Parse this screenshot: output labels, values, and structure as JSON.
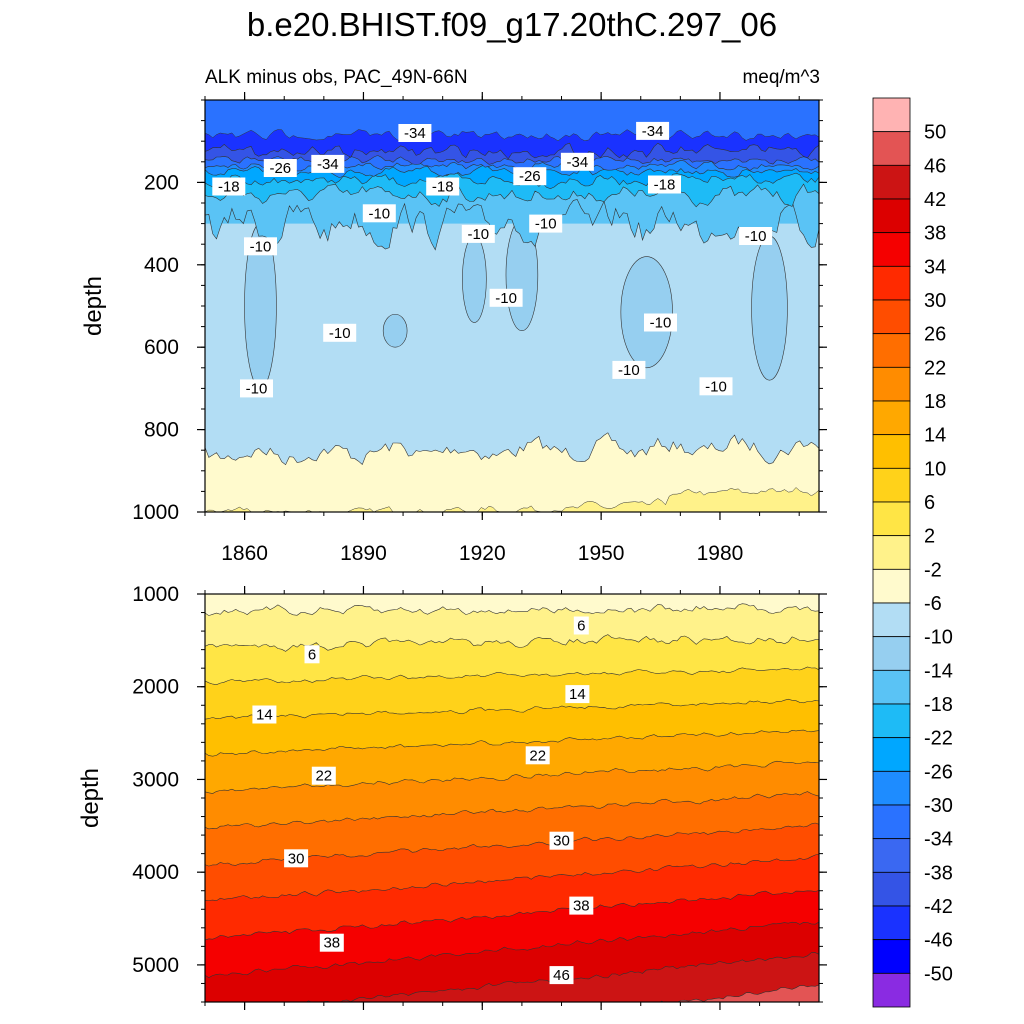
{
  "title": "b.e20.BHIST.f09_g17.20thC.297_06",
  "chart_data": {
    "type": "heatmap",
    "title": "b.e20.BHIST.f09_g17.20thC.297_06",
    "subtitle_left": "ALK minus obs, PAC_49N-66N",
    "subtitle_right": "meq/m^3",
    "colorbar": {
      "labels": [
        "50",
        "46",
        "42",
        "38",
        "34",
        "30",
        "26",
        "22",
        "18",
        "14",
        "10",
        "6",
        "2",
        "-2",
        "-6",
        "-10",
        "-14",
        "-18",
        "-22",
        "-26",
        "-30",
        "-34",
        "-38",
        "-42",
        "-46",
        "-50"
      ],
      "colors": [
        "#ffb3b3",
        "#e35454",
        "#cc1414",
        "#dc0000",
        "#f50000",
        "#ff2a00",
        "#ff4d00",
        "#ff6e00",
        "#ff8c00",
        "#ffa800",
        "#ffbf00",
        "#ffd21a",
        "#ffe545",
        "#fff28a",
        "#fffacd",
        "#b2ddf4",
        "#96cff0",
        "#5ac3f5",
        "#1ebbf6",
        "#00a7ff",
        "#1e8cff",
        "#2a72ff",
        "#3a68f2",
        "#3454e6",
        "#1a32ff",
        "#0000ff",
        "#8a2be2"
      ]
    },
    "panels": [
      {
        "name": "upper",
        "ylabel": "depth",
        "xlim": [
          1850,
          2005
        ],
        "ylim": [
          0,
          1000
        ],
        "y_reversed": true,
        "xticks": [
          1860,
          1890,
          1920,
          1950,
          1980
        ],
        "yticks": [
          200,
          400,
          600,
          800,
          1000
        ],
        "contour_labels": [
          {
            "text": "-34",
            "x": 1903,
            "y": 80
          },
          {
            "text": "-34",
            "x": 1963,
            "y": 75
          },
          {
            "text": "-26",
            "x": 1869,
            "y": 165
          },
          {
            "text": "-34",
            "x": 1881,
            "y": 155
          },
          {
            "text": "-34",
            "x": 1944,
            "y": 150
          },
          {
            "text": "-26",
            "x": 1932,
            "y": 185
          },
          {
            "text": "-18",
            "x": 1856,
            "y": 210
          },
          {
            "text": "-18",
            "x": 1910,
            "y": 210
          },
          {
            "text": "-18",
            "x": 1966,
            "y": 205
          },
          {
            "text": "-10",
            "x": 1894,
            "y": 275
          },
          {
            "text": "-10",
            "x": 1936,
            "y": 300
          },
          {
            "text": "-10",
            "x": 1919,
            "y": 325
          },
          {
            "text": "-10",
            "x": 1864,
            "y": 355
          },
          {
            "text": "-10",
            "x": 1989,
            "y": 330
          },
          {
            "text": "-10",
            "x": 1926,
            "y": 480
          },
          {
            "text": "-10",
            "x": 1884,
            "y": 565
          },
          {
            "text": "-10",
            "x": 1965,
            "y": 540
          },
          {
            "text": "-10",
            "x": 1957,
            "y": 655
          },
          {
            "text": "-10",
            "x": 1863,
            "y": 700
          },
          {
            "text": "-10",
            "x": 1979,
            "y": 695
          }
        ]
      },
      {
        "name": "lower",
        "ylabel": "depth",
        "xlim": [
          1850,
          2005
        ],
        "ylim": [
          1000,
          5400
        ],
        "y_reversed": true,
        "yticks": [
          1000,
          2000,
          3000,
          4000,
          5000
        ],
        "contour_labels": [
          {
            "text": "6",
            "x": 1877,
            "y": 1650
          },
          {
            "text": "6",
            "x": 1945,
            "y": 1340
          },
          {
            "text": "14",
            "x": 1865,
            "y": 2300
          },
          {
            "text": "14",
            "x": 1944,
            "y": 2080
          },
          {
            "text": "22",
            "x": 1880,
            "y": 2960
          },
          {
            "text": "22",
            "x": 1934,
            "y": 2740
          },
          {
            "text": "30",
            "x": 1873,
            "y": 3850
          },
          {
            "text": "30",
            "x": 1940,
            "y": 3660
          },
          {
            "text": "38",
            "x": 1882,
            "y": 4760
          },
          {
            "text": "38",
            "x": 1945,
            "y": 4360
          },
          {
            "text": "46",
            "x": 1940,
            "y": 5110
          }
        ]
      }
    ]
  }
}
